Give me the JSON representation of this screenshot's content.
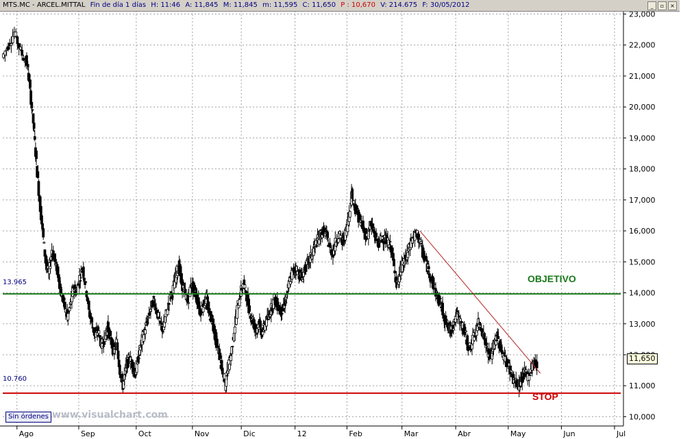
{
  "header": {
    "symbol": "MTS.MC - ARCEL.MITTAL",
    "period": "Fin de día 1 días",
    "hour": "H: 11:46",
    "open": "A: 11,845",
    "max": "M: 11,845",
    "min": "m: 11,595",
    "close": "C: 11,650",
    "prev": "P : 10,670",
    "volume": "V: 214.675",
    "date": "F: 30/05/2012"
  },
  "levels": {
    "objetivo_value": "13.965",
    "objetivo_label": "OBJETIVO",
    "stop_value": "10.760",
    "stop_label": "STOP"
  },
  "last_price": "11,650",
  "status": {
    "orders": "Sin órdenes",
    "watermark": "www.visualchart.com"
  },
  "colors": {
    "objetivo": "#1a7a1a",
    "stop": "#cc0000",
    "trendline": "#b22222",
    "candle": "#000000"
  },
  "chart_data": {
    "type": "candlestick",
    "ylim": [
      9.7,
      23.1
    ],
    "grid": true,
    "y_ticks": [
      "23,000",
      "22,000",
      "21,000",
      "20,000",
      "19,000",
      "18,000",
      "17,000",
      "16,000",
      "15,000",
      "14,000",
      "13,000",
      "12,000",
      "11,000",
      "10,000"
    ],
    "y_tick_values": [
      23,
      22,
      21,
      20,
      19,
      18,
      17,
      16,
      15,
      14,
      13,
      12,
      11,
      10
    ],
    "x_labels": [
      "Ago",
      "Sep",
      "Oct",
      "Nov",
      "Dic",
      "12",
      "Feb",
      "Mar",
      "Abr",
      "May",
      "Jun",
      "Jul"
    ],
    "x_label_positions": [
      0.023,
      0.123,
      0.216,
      0.307,
      0.386,
      0.473,
      0.557,
      0.646,
      0.733,
      0.818,
      0.904,
      0.99
    ],
    "horizontal_lines": [
      {
        "name": "OBJETIVO",
        "value": 13.965
      },
      {
        "name": "STOP",
        "value": 10.76
      }
    ],
    "trendline": {
      "x": [
        0.675,
        0.87
      ],
      "y": [
        16.0,
        11.4
      ]
    },
    "price_path": [
      [
        0.0,
        21.6
      ],
      [
        0.01,
        22.0
      ],
      [
        0.02,
        22.4
      ],
      [
        0.03,
        21.8
      ],
      [
        0.04,
        21.4
      ],
      [
        0.045,
        20.5
      ],
      [
        0.05,
        19.5
      ],
      [
        0.055,
        18.2
      ],
      [
        0.06,
        17.0
      ],
      [
        0.065,
        16.0
      ],
      [
        0.07,
        15.0
      ],
      [
        0.075,
        14.6
      ],
      [
        0.08,
        15.4
      ],
      [
        0.085,
        15.0
      ],
      [
        0.09,
        14.6
      ],
      [
        0.095,
        14.0
      ],
      [
        0.1,
        13.6
      ],
      [
        0.105,
        13.2
      ],
      [
        0.11,
        13.6
      ],
      [
        0.115,
        14.2
      ],
      [
        0.12,
        14.0
      ],
      [
        0.125,
        14.5
      ],
      [
        0.13,
        14.8
      ],
      [
        0.135,
        14.2
      ],
      [
        0.14,
        13.4
      ],
      [
        0.145,
        13.0
      ],
      [
        0.15,
        12.6
      ],
      [
        0.155,
        12.8
      ],
      [
        0.16,
        12.3
      ],
      [
        0.165,
        12.5
      ],
      [
        0.17,
        12.9
      ],
      [
        0.175,
        12.5
      ],
      [
        0.18,
        12.1
      ],
      [
        0.185,
        12.4
      ],
      [
        0.19,
        11.5
      ],
      [
        0.195,
        11.0
      ],
      [
        0.2,
        11.6
      ],
      [
        0.205,
        11.9
      ],
      [
        0.21,
        11.7
      ],
      [
        0.215,
        11.4
      ],
      [
        0.22,
        11.9
      ],
      [
        0.225,
        12.4
      ],
      [
        0.23,
        12.8
      ],
      [
        0.235,
        13.1
      ],
      [
        0.24,
        13.5
      ],
      [
        0.245,
        13.8
      ],
      [
        0.25,
        13.4
      ],
      [
        0.255,
        13.0
      ],
      [
        0.26,
        12.8
      ],
      [
        0.265,
        13.3
      ],
      [
        0.27,
        13.8
      ],
      [
        0.275,
        14.0
      ],
      [
        0.28,
        14.5
      ],
      [
        0.285,
        14.9
      ],
      [
        0.29,
        14.3
      ],
      [
        0.295,
        14.0
      ],
      [
        0.3,
        13.7
      ],
      [
        0.305,
        14.3
      ],
      [
        0.31,
        14.1
      ],
      [
        0.315,
        13.8
      ],
      [
        0.32,
        13.4
      ],
      [
        0.325,
        13.6
      ],
      [
        0.33,
        13.8
      ],
      [
        0.335,
        13.3
      ],
      [
        0.34,
        13.1
      ],
      [
        0.345,
        12.5
      ],
      [
        0.35,
        12.1
      ],
      [
        0.355,
        11.5
      ],
      [
        0.36,
        11.0
      ],
      [
        0.365,
        11.6
      ],
      [
        0.37,
        12.0
      ],
      [
        0.375,
        12.8
      ],
      [
        0.38,
        13.5
      ],
      [
        0.385,
        14.0
      ],
      [
        0.39,
        14.3
      ],
      [
        0.395,
        13.9
      ],
      [
        0.4,
        13.4
      ],
      [
        0.405,
        13.1
      ],
      [
        0.41,
        12.8
      ],
      [
        0.415,
        13.0
      ],
      [
        0.42,
        12.7
      ],
      [
        0.425,
        13.0
      ],
      [
        0.43,
        13.2
      ],
      [
        0.435,
        13.5
      ],
      [
        0.44,
        13.8
      ],
      [
        0.445,
        13.6
      ],
      [
        0.45,
        13.4
      ],
      [
        0.455,
        13.5
      ],
      [
        0.46,
        13.9
      ],
      [
        0.465,
        14.4
      ],
      [
        0.47,
        14.7
      ],
      [
        0.475,
        14.8
      ],
      [
        0.48,
        14.6
      ],
      [
        0.485,
        14.5
      ],
      [
        0.49,
        14.8
      ],
      [
        0.495,
        15.0
      ],
      [
        0.5,
        15.2
      ],
      [
        0.505,
        15.5
      ],
      [
        0.51,
        15.7
      ],
      [
        0.515,
        15.9
      ],
      [
        0.52,
        16.0
      ],
      [
        0.525,
        15.8
      ],
      [
        0.53,
        15.4
      ],
      [
        0.535,
        15.3
      ],
      [
        0.54,
        15.7
      ],
      [
        0.545,
        15.9
      ],
      [
        0.55,
        15.6
      ],
      [
        0.555,
        15.9
      ],
      [
        0.56,
        16.4
      ],
      [
        0.565,
        17.2
      ],
      [
        0.57,
        16.8
      ],
      [
        0.575,
        16.5
      ],
      [
        0.58,
        16.3
      ],
      [
        0.585,
        16.0
      ],
      [
        0.59,
        15.8
      ],
      [
        0.595,
        16.2
      ],
      [
        0.6,
        16.0
      ],
      [
        0.605,
        15.7
      ],
      [
        0.61,
        15.6
      ],
      [
        0.615,
        15.8
      ],
      [
        0.62,
        15.7
      ],
      [
        0.625,
        15.6
      ],
      [
        0.63,
        15.4
      ],
      [
        0.635,
        14.6
      ],
      [
        0.64,
        14.3
      ],
      [
        0.645,
        14.8
      ],
      [
        0.65,
        15.0
      ],
      [
        0.655,
        15.2
      ],
      [
        0.66,
        15.6
      ],
      [
        0.665,
        15.8
      ],
      [
        0.67,
        15.9
      ],
      [
        0.675,
        15.7
      ],
      [
        0.68,
        15.3
      ],
      [
        0.685,
        15.0
      ],
      [
        0.69,
        14.7
      ],
      [
        0.695,
        14.4
      ],
      [
        0.7,
        14.1
      ],
      [
        0.705,
        13.8
      ],
      [
        0.71,
        13.6
      ],
      [
        0.715,
        13.2
      ],
      [
        0.72,
        12.9
      ],
      [
        0.725,
        12.8
      ],
      [
        0.73,
        13.0
      ],
      [
        0.735,
        13.3
      ],
      [
        0.74,
        13.1
      ],
      [
        0.745,
        12.9
      ],
      [
        0.75,
        12.6
      ],
      [
        0.755,
        12.2
      ],
      [
        0.76,
        12.4
      ],
      [
        0.765,
        12.7
      ],
      [
        0.77,
        13.0
      ],
      [
        0.775,
        12.9
      ],
      [
        0.78,
        12.5
      ],
      [
        0.785,
        12.1
      ],
      [
        0.79,
        11.9
      ],
      [
        0.795,
        12.3
      ],
      [
        0.8,
        12.6
      ],
      [
        0.805,
        12.3
      ],
      [
        0.81,
        12.0
      ],
      [
        0.815,
        11.8
      ],
      [
        0.82,
        11.6
      ],
      [
        0.825,
        11.3
      ],
      [
        0.83,
        11.1
      ],
      [
        0.835,
        11.0
      ],
      [
        0.84,
        11.2
      ],
      [
        0.845,
        11.4
      ],
      [
        0.85,
        11.3
      ],
      [
        0.855,
        11.5
      ],
      [
        0.86,
        11.8
      ],
      [
        0.865,
        11.65
      ]
    ]
  }
}
